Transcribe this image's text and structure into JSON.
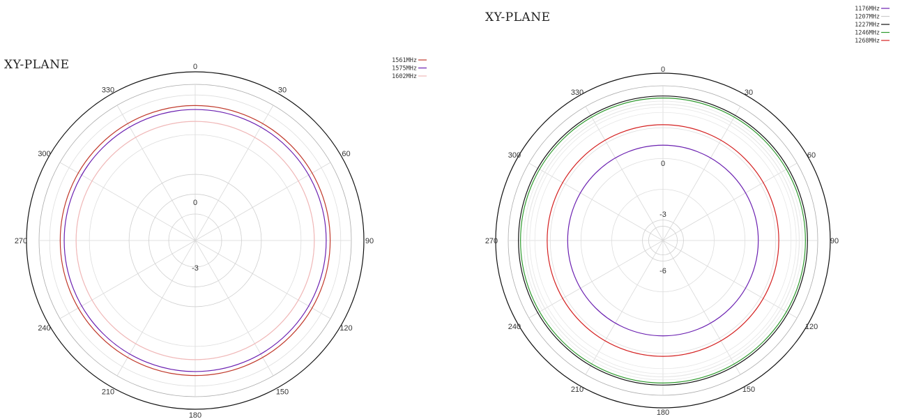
{
  "chart_data": [
    {
      "type": "polar",
      "title": "XY-PLANE",
      "angle_labels": [
        "0",
        "30",
        "60",
        "90",
        "120",
        "150",
        "180",
        "210",
        "240",
        "270",
        "300",
        "330"
      ],
      "radial_tick_labels": [
        "0",
        "-3"
      ],
      "legend_position": "top-right",
      "series": [
        {
          "name": "1561MHz",
          "color": "#c0392b",
          "value": 2.2
        },
        {
          "name": "1575MHz",
          "color": "#6a1fb0",
          "value": 1.9
        },
        {
          "name": "1602MHz",
          "color": "#f0b8b8",
          "value": 1.0
        }
      ],
      "rings": [
        {
          "value": -6,
          "color": "#cfcfcf"
        },
        {
          "value": -4.5,
          "color": "#cfcfcf"
        },
        {
          "value": -3,
          "color": "#cfcfcf"
        },
        {
          "value": 0,
          "color": "#dddddd"
        },
        {
          "value": 1,
          "color": "#f3cccc"
        },
        {
          "value": 3,
          "color": "#dddddd"
        }
      ],
      "rmin": -8,
      "rmax": 3.8
    },
    {
      "type": "polar",
      "title": "XY-PLANE",
      "angle_labels": [
        "0",
        "30",
        "60",
        "90",
        "120",
        "150",
        "180",
        "210",
        "240",
        "270",
        "300",
        "330"
      ],
      "radial_tick_labels": [
        "0",
        "-3",
        "-6"
      ],
      "legend_position": "top-right",
      "series": [
        {
          "name": "1176MHz",
          "color": "#6a1fb0",
          "value": -1.7
        },
        {
          "name": "1207MHz",
          "color": "#e8e8e8",
          "value": 2.3
        },
        {
          "name": "1227MHz",
          "color": "#111111",
          "value": 3.1
        },
        {
          "name": "1246MHz",
          "color": "#2e9a2e",
          "value": 2.9
        },
        {
          "name": "1268MHz",
          "color": "#d42020",
          "value": 0.3
        }
      ],
      "rings": [
        {
          "value": -9.6,
          "color": "#cfcfcf"
        },
        {
          "value": -9,
          "color": "#cfcfcf"
        },
        {
          "value": -6,
          "color": "#dddddd"
        },
        {
          "value": -3,
          "color": "#dddddd"
        },
        {
          "value": 0,
          "color": "#dddddd"
        },
        {
          "value": 1.5,
          "color": "#e6e6e6"
        },
        {
          "value": 2.0,
          "color": "#e6e6e6"
        },
        {
          "value": 2.6,
          "color": "#e6e6e6"
        }
      ],
      "rmin": -11,
      "rmax": 4.1
    }
  ]
}
